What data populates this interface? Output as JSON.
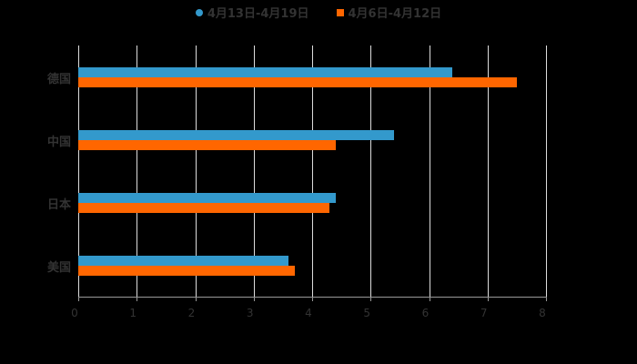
{
  "legend": [
    {
      "label": "4月13日-4月19日",
      "color": "#3399cc"
    },
    {
      "label": "4月6日-4月12日",
      "color": "#ff6600"
    }
  ],
  "chart_data": {
    "type": "bar",
    "orientation": "horizontal",
    "categories": [
      "德国",
      "中国",
      "日本",
      "美国"
    ],
    "series": [
      {
        "name": "4月13日-4月19日",
        "color": "#3399cc",
        "values": [
          6.4,
          5.4,
          4.4,
          3.6
        ]
      },
      {
        "name": "4月6日-4月12日",
        "color": "#ff6600",
        "values": [
          7.5,
          4.4,
          4.3,
          3.7
        ]
      }
    ],
    "xlim": [
      0,
      8
    ],
    "xticks": [
      "0",
      "1",
      "2",
      "3",
      "4",
      "5",
      "6",
      "7",
      "8"
    ],
    "grid": true,
    "legend_position": "top"
  }
}
